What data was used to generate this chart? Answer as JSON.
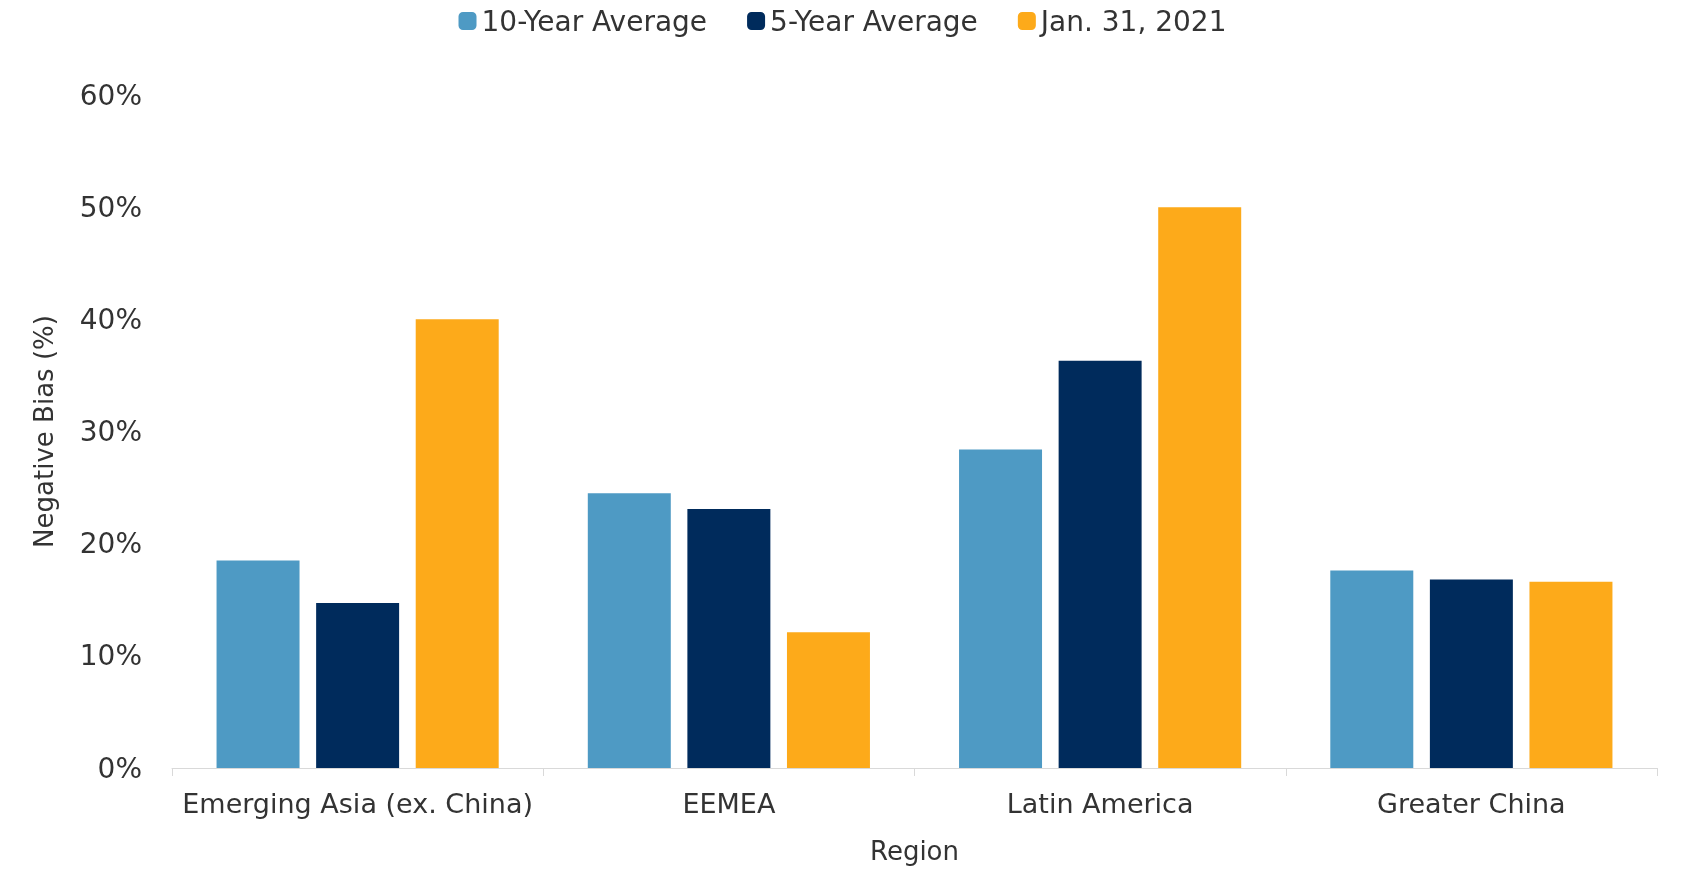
{
  "chart_data": {
    "type": "bar",
    "xlabel": "Region",
    "ylabel": "Negative Bias (%)",
    "categories": [
      "Emerging Asia (ex. China)",
      "EEMEA",
      "Latin America",
      "Greater China"
    ],
    "series": [
      {
        "name": "10-Year Average",
        "color": "#4e9ac4",
        "values": [
          18.5,
          24.5,
          28.4,
          17.6
        ]
      },
      {
        "name": "5-Year Average",
        "color": "#002b5c",
        "values": [
          14.7,
          23.1,
          36.3,
          16.8
        ]
      },
      {
        "name": "Jan. 31, 2021",
        "color": "#fdaa1a",
        "values": [
          40.0,
          12.1,
          50.0,
          16.6
        ]
      }
    ],
    "ylim": [
      0,
      60
    ],
    "yticks": [
      {
        "value": 0,
        "label": "0%"
      },
      {
        "value": 10,
        "label": "10%"
      },
      {
        "value": 20,
        "label": "20%"
      },
      {
        "value": 30,
        "label": "30%"
      },
      {
        "value": 40,
        "label": "40%"
      },
      {
        "value": 50,
        "label": "50%"
      },
      {
        "value": 60,
        "label": "60%"
      }
    ],
    "grid": false,
    "legend": "top"
  }
}
